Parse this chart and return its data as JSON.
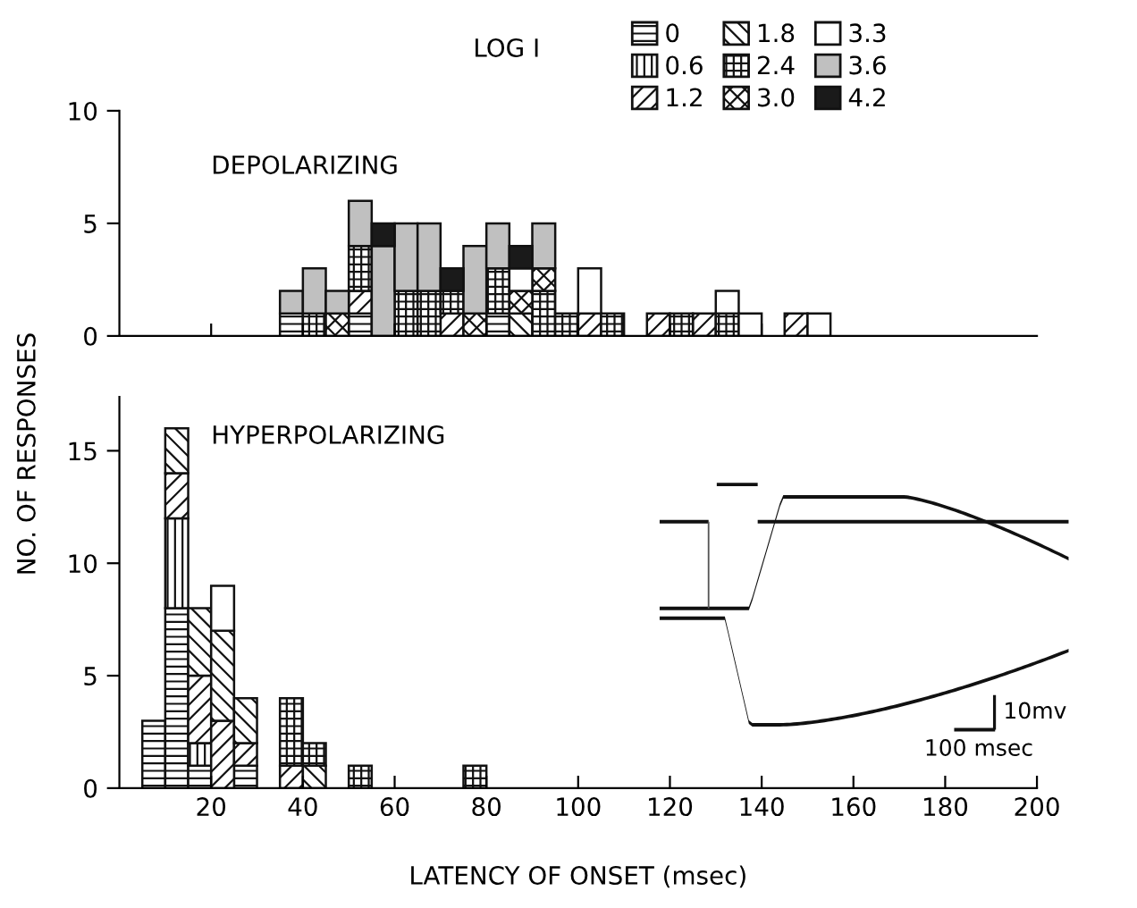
{
  "chart_data": [
    {
      "type": "bar",
      "title": "DEPOLARIZING",
      "legend_title": "LOG I",
      "legend": "top right",
      "stacked": true,
      "tick_labels": "y",
      "x": [
        37.5,
        42.5,
        47.5,
        52.5,
        57.5,
        62.5,
        67.5,
        72.5,
        77.5,
        82.5,
        87.5,
        92.5,
        97.5,
        102.5,
        107.5,
        112.5,
        117.5,
        122.5,
        127.5,
        132.5,
        137.5,
        142.5,
        147.5,
        152.5
      ],
      "xlim": [
        0,
        200
      ],
      "ylim": [
        0,
        10
      ],
      "yticks": [
        0,
        5,
        10
      ],
      "xticks": [
        {
          "value": 20,
          "label": null
        },
        {
          "value": 40,
          "label": null
        },
        {
          "value": 60,
          "label": null
        },
        {
          "value": 80,
          "label": null
        },
        {
          "value": 100,
          "label": null
        },
        {
          "value": 120,
          "label": null
        },
        {
          "value": 140,
          "label": null
        }
      ],
      "series": [
        {
          "name": "0",
          "color": "#111111",
          "values": [
            1,
            0,
            0,
            1,
            0,
            0,
            0,
            0,
            0,
            1,
            0,
            0,
            0,
            0,
            0,
            0,
            0,
            0,
            0,
            0,
            0,
            0,
            0,
            0
          ]
        },
        {
          "name": "0.6",
          "color": "#111111",
          "values": [
            0,
            0,
            0,
            0,
            0,
            0,
            0,
            0,
            0,
            0,
            0,
            0,
            0,
            0,
            0,
            0,
            0,
            0,
            0,
            0,
            0,
            0,
            0,
            0
          ]
        },
        {
          "name": "1.2",
          "color": "#111111",
          "values": [
            0,
            0,
            0,
            1,
            0,
            0,
            0,
            1,
            0,
            0,
            0,
            0,
            0,
            1,
            0,
            0,
            1,
            0,
            1,
            0,
            0,
            0,
            1,
            0
          ]
        },
        {
          "name": "1.8",
          "color": "#111111",
          "values": [
            0,
            0,
            0,
            0,
            0,
            0,
            0,
            0,
            0,
            0,
            1,
            0,
            0,
            0,
            0,
            0,
            0,
            0,
            0,
            0,
            0,
            0,
            0,
            0
          ]
        },
        {
          "name": "2.4",
          "color": "#111111",
          "values": [
            0,
            1,
            0,
            2,
            0,
            2,
            2,
            1,
            0,
            2,
            0,
            2,
            1,
            0,
            1,
            0,
            0,
            1,
            0,
            1,
            0,
            0,
            0,
            0
          ]
        },
        {
          "name": "3.0",
          "color": "#111111",
          "values": [
            0,
            0,
            1,
            0,
            0,
            0,
            0,
            0,
            1,
            0,
            1,
            1,
            0,
            0,
            0,
            0,
            0,
            0,
            0,
            0,
            0,
            0,
            0,
            0
          ]
        },
        {
          "name": "3.3",
          "color": "#ffffff",
          "values": [
            0,
            0,
            0,
            0,
            0,
            0,
            0,
            0,
            0,
            0,
            1,
            0,
            0,
            2,
            0,
            0,
            0,
            0,
            0,
            1,
            1,
            0,
            0,
            1
          ]
        },
        {
          "name": "3.6",
          "color": "#c0c0c0",
          "values": [
            1,
            2,
            1,
            2,
            4,
            3,
            3,
            0,
            3,
            2,
            0,
            2,
            0,
            0,
            0,
            0,
            0,
            0,
            0,
            0,
            0,
            0,
            0,
            0
          ]
        },
        {
          "name": "4.2",
          "color": "#1a1a1a",
          "values": [
            0,
            0,
            0,
            0,
            1,
            0,
            0,
            1,
            0,
            0,
            1,
            0,
            0,
            0,
            0,
            0,
            0,
            0,
            0,
            0,
            0,
            0,
            0,
            0
          ]
        }
      ]
    },
    {
      "type": "bar",
      "title": "HYPERPOLARIZING",
      "xlabel": "LATENCY OF ONSET (msec)",
      "ylabel": "NO. OF RESPONSES",
      "stacked": true,
      "annotations": [
        "10mv",
        "100 msec"
      ],
      "x": [
        7.5,
        12.5,
        17.5,
        22.5,
        27.5,
        32.5,
        37.5,
        42.5,
        47.5,
        52.5,
        57.5,
        62.5,
        67.5,
        72.5,
        77.5
      ],
      "xlim": [
        0,
        200
      ],
      "xticks": [
        20,
        40,
        60,
        80,
        100,
        120,
        140,
        160,
        180,
        200
      ],
      "ylim": [
        0,
        17.4
      ],
      "yticks": [
        0,
        5,
        10,
        15
      ],
      "series": [
        {
          "color": "#111111",
          "values": [
            3,
            8,
            1,
            0,
            1,
            0,
            0,
            0,
            0,
            0,
            0,
            0,
            0,
            0,
            0
          ]
        },
        {
          "color": "#111111",
          "values": [
            0,
            4,
            1,
            0,
            0,
            0,
            0,
            0,
            0,
            0,
            0,
            0,
            0,
            0,
            0
          ]
        },
        {
          "color": "#111111",
          "values": [
            0,
            2,
            3,
            3,
            1,
            0,
            1,
            0,
            0,
            0,
            0,
            0,
            0,
            0,
            0
          ]
        },
        {
          "color": "#111111",
          "values": [
            0,
            2,
            3,
            4,
            2,
            0,
            0,
            1,
            0,
            0,
            0,
            0,
            0,
            0,
            0
          ]
        },
        {
          "color": "#111111",
          "values": [
            0,
            0,
            0,
            0,
            0,
            0,
            3,
            1,
            0,
            1,
            0,
            0,
            0,
            0,
            1
          ]
        },
        {
          "color": "#ffffff",
          "values": [
            0,
            0,
            0,
            2,
            0,
            0,
            0,
            0,
            0,
            0,
            0,
            0,
            0,
            0,
            0
          ]
        }
      ]
    }
  ]
}
